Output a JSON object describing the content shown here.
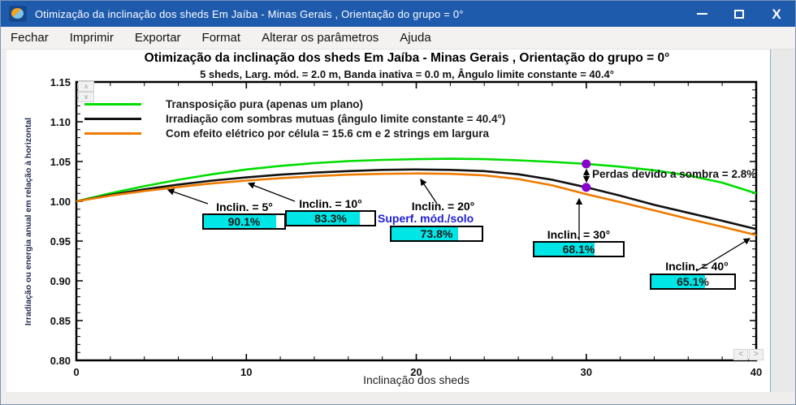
{
  "window": {
    "title": "Otimização da inclinação dos sheds Em Jaíba - Minas Gerais , Orientação do grupo = 0°"
  },
  "menu": {
    "items": [
      "Fechar",
      "Imprimir",
      "Exportar",
      "Format",
      "Alterar os parâmetros",
      "Ajuda"
    ]
  },
  "chart_data": {
    "type": "line",
    "title": "Otimização da inclinação dos sheds Em Jaíba - Minas Gerais , Orientação do grupo = 0°",
    "subtitle": "5 sheds,  Larg. mód. = 2.0 m, Banda inativa = 0.0 m, Ângulo limite constante = 40.4°",
    "xlabel": "Inclinação dos sheds",
    "ylabel": "Irradiação ou energia anual em relação à horizontal",
    "xlim": [
      0,
      40
    ],
    "ylim": [
      0.8,
      1.15
    ],
    "grid": false,
    "legend_position": "top-left-inside",
    "x_axis": {
      "ticks": [
        0,
        10,
        20,
        30,
        40
      ],
      "labels": [
        "0",
        "10",
        "20",
        "30",
        "40"
      ],
      "minor_step": 2
    },
    "y_axis": {
      "ticks": [
        1.15,
        1.1,
        1.05,
        1.0,
        0.95,
        0.9,
        0.85,
        0.8
      ],
      "labels": [
        "1.15",
        "1.10",
        "1.05",
        "1.00",
        "0.95",
        "0.90",
        "0.85",
        "0.80"
      ],
      "minor_step": 0.01
    },
    "x": [
      0,
      2,
      4,
      6,
      8,
      10,
      12,
      14,
      16,
      18,
      20,
      22,
      24,
      26,
      28,
      30,
      32,
      34,
      36,
      38,
      40
    ],
    "series": [
      {
        "name": "Transposição pura (apenas um plano)",
        "color": "#00dd00",
        "values": [
          1.0,
          1.01,
          1.019,
          1.027,
          1.034,
          1.04,
          1.0445,
          1.048,
          1.0505,
          1.052,
          1.053,
          1.0535,
          1.053,
          1.0515,
          1.0495,
          1.047,
          1.0435,
          1.039,
          1.0325,
          1.0235,
          1.01
        ]
      },
      {
        "name": "Irradiação com sombras mutuas (ângulo limite constante = 40.4°)",
        "color": "#111111",
        "values": [
          1.0,
          1.008,
          1.015,
          1.021,
          1.026,
          1.03,
          1.0335,
          1.036,
          1.038,
          1.0395,
          1.04,
          1.0395,
          1.038,
          1.034,
          1.027,
          1.0175,
          1.007,
          0.9955,
          0.9855,
          0.9755,
          0.965
        ]
      },
      {
        "name": "Com efeito elétrico por célula = 15.6 cm e 2 strings em largura",
        "color": "#ee7a00",
        "values": [
          1.0,
          1.007,
          1.013,
          1.018,
          1.0225,
          1.026,
          1.029,
          1.0315,
          1.0335,
          1.0345,
          1.035,
          1.0345,
          1.0325,
          1.028,
          1.02,
          1.009,
          0.999,
          0.9885,
          0.978,
          0.968,
          0.9575
        ]
      }
    ],
    "markers": {
      "color": "#8800cc",
      "points": [
        {
          "x": 30,
          "y": 1.047
        },
        {
          "x": 30,
          "y": 1.0175
        }
      ]
    },
    "loss_annotation": {
      "text": "Perdas devido a sombra = 2.8%"
    },
    "annotations": [
      {
        "label": "Inclin. = 5°",
        "value_label": "90.1%",
        "value": 90.1
      },
      {
        "label": "Inclin. = 10°",
        "value_label": "83.3%",
        "value": 83.3
      },
      {
        "label": "Inclin. = 20°",
        "sublabel": "Superf. mód./solo",
        "value_label": "73.8%",
        "value": 73.8
      },
      {
        "label": "Inclin. = 30°",
        "value_label": "68.1%",
        "value": 68.1
      },
      {
        "label": "Inclin. = 40°",
        "value_label": "65.1%",
        "value": 65.1
      }
    ],
    "colors": {
      "fill_cyan": "#00e5e5",
      "sublabel_blue": "#1d1dd6",
      "marker_purple": "#8800cc"
    }
  }
}
